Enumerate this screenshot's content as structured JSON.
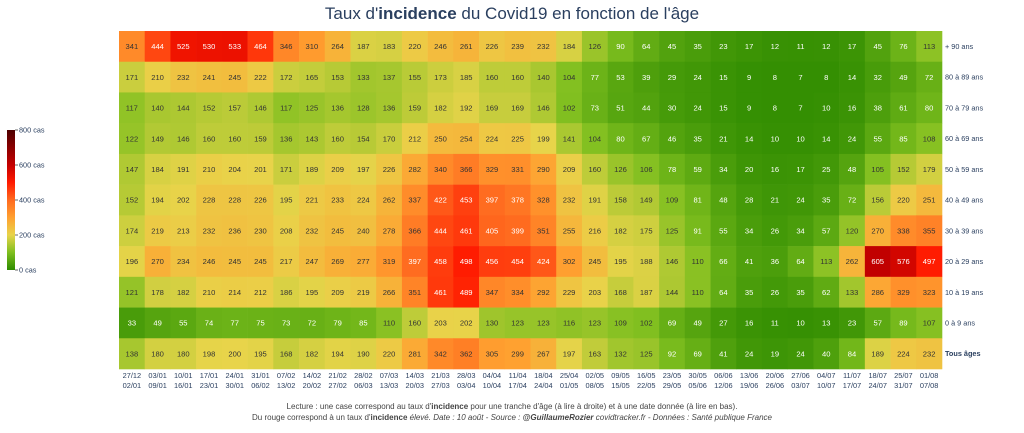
{
  "title": {
    "pre": "Taux d'",
    "bold": "incidence",
    "post": " du Covid19 en fonction de l'âge"
  },
  "footer": {
    "line1_pre": "Lecture : une case correspond au taux d'",
    "line1_bold": "incidence",
    "line1_post": " pour une tranche d'âge (à lire à droite) et à une date donnée (à lire en bas).",
    "line2_pre": "Du rouge correspond à un taux d'",
    "line2_bold": "incidence",
    "line2_mid": " élevé.  Date : 10 août - Source : ",
    "line2_handle": "@GuillaumeRozier",
    "line2_post": " covidtracker.fr - Données : Santé publique France"
  },
  "chart_data": {
    "type": "heatmap",
    "colorbar": {
      "ticks": [
        "800 cas",
        "600 cas",
        "400 cas",
        "200 cas",
        "0 cas"
      ],
      "range": [
        0,
        800
      ]
    },
    "colorscale": [
      "#2e8b00",
      "#7fbf1f",
      "#e8d44a",
      "#ffa030",
      "#ff6a1f",
      "#ff1a00",
      "#c40000",
      "#8a0000",
      "#4d0000"
    ],
    "x_top": [
      "27/12",
      "03/01",
      "10/01",
      "17/01",
      "24/01",
      "31/01",
      "07/02",
      "14/02",
      "21/02",
      "28/02",
      "07/03",
      "14/03",
      "21/03",
      "28/03",
      "04/04",
      "11/04",
      "18/04",
      "25/04",
      "02/05",
      "09/05",
      "16/05",
      "23/05",
      "30/05",
      "06/06",
      "13/06",
      "20/06",
      "27/06",
      "04/07",
      "11/07",
      "18/07",
      "25/07",
      "01/08"
    ],
    "x_bottom": [
      "02/01",
      "09/01",
      "16/01",
      "23/01",
      "30/01",
      "06/02",
      "13/02",
      "20/02",
      "27/02",
      "06/03",
      "13/03",
      "20/03",
      "27/03",
      "03/04",
      "10/04",
      "17/04",
      "24/04",
      "01/05",
      "08/05",
      "15/05",
      "22/05",
      "29/05",
      "05/06",
      "12/06",
      "19/06",
      "26/06",
      "03/07",
      "10/07",
      "17/07",
      "24/07",
      "31/07",
      "07/08"
    ],
    "rows": [
      {
        "label": "+ 90 ans",
        "values": [
          341,
          444,
          525,
          530,
          533,
          464,
          346,
          310,
          264,
          187,
          183,
          220,
          246,
          261,
          226,
          239,
          232,
          184,
          126,
          90,
          64,
          45,
          35,
          23,
          17,
          12,
          11,
          12,
          17,
          45,
          76,
          113
        ]
      },
      {
        "label": "80 à 89 ans",
        "values": [
          171,
          210,
          232,
          241,
          245,
          222,
          172,
          165,
          153,
          133,
          137,
          155,
          173,
          185,
          160,
          160,
          140,
          104,
          77,
          53,
          39,
          29,
          24,
          15,
          9,
          8,
          7,
          8,
          14,
          32,
          49,
          72
        ]
      },
      {
        "label": "70 à 79 ans",
        "values": [
          117,
          140,
          144,
          152,
          157,
          146,
          117,
          125,
          136,
          128,
          136,
          159,
          182,
          192,
          169,
          169,
          146,
          102,
          73,
          51,
          44,
          30,
          24,
          15,
          9,
          8,
          7,
          10,
          16,
          38,
          61,
          80
        ]
      },
      {
        "label": "60 à 69 ans",
        "values": [
          122,
          149,
          146,
          160,
          160,
          159,
          136,
          143,
          160,
          154,
          170,
          212,
          250,
          254,
          224,
          225,
          199,
          141,
          104,
          80,
          67,
          46,
          35,
          21,
          14,
          10,
          10,
          14,
          24,
          55,
          85,
          108
        ]
      },
      {
        "label": "50 à 59 ans",
        "values": [
          147,
          184,
          191,
          210,
          204,
          201,
          171,
          189,
          209,
          197,
          226,
          282,
          340,
          366,
          329,
          331,
          290,
          209,
          160,
          126,
          106,
          78,
          59,
          34,
          20,
          16,
          17,
          25,
          48,
          105,
          152,
          179
        ]
      },
      {
        "label": "40 à 49 ans",
        "values": [
          152,
          194,
          202,
          228,
          228,
          226,
          195,
          221,
          233,
          224,
          262,
          337,
          422,
          453,
          397,
          378,
          328,
          232,
          191,
          158,
          149,
          109,
          81,
          48,
          28,
          21,
          24,
          35,
          72,
          156,
          220,
          251
        ]
      },
      {
        "label": "30 à 39 ans",
        "values": [
          174,
          219,
          213,
          232,
          236,
          230,
          208,
          232,
          245,
          240,
          278,
          366,
          444,
          461,
          405,
          399,
          351,
          255,
          216,
          182,
          175,
          125,
          91,
          55,
          34,
          26,
          34,
          57,
          120,
          270,
          338,
          355
        ]
      },
      {
        "label": "20 à 29 ans",
        "values": [
          196,
          270,
          234,
          246,
          245,
          245,
          217,
          247,
          269,
          277,
          319,
          397,
          458,
          498,
          456,
          454,
          424,
          302,
          245,
          195,
          188,
          146,
          110,
          66,
          41,
          36,
          64,
          113,
          262,
          605,
          576,
          497
        ]
      },
      {
        "label": "10 à 19 ans",
        "values": [
          121,
          178,
          182,
          210,
          214,
          212,
          186,
          195,
          209,
          219,
          266,
          351,
          461,
          489,
          347,
          334,
          292,
          229,
          203,
          168,
          187,
          144,
          110,
          64,
          35,
          26,
          35,
          62,
          133,
          286,
          329,
          323
        ]
      },
      {
        "label": "0 à 9 ans",
        "values": [
          33,
          49,
          55,
          74,
          77,
          75,
          73,
          72,
          79,
          85,
          110,
          160,
          203,
          202,
          130,
          123,
          123,
          116,
          123,
          109,
          102,
          69,
          49,
          27,
          16,
          11,
          10,
          13,
          23,
          57,
          89,
          107
        ]
      },
      {
        "label": "Tous âges",
        "bold": true,
        "values": [
          138,
          180,
          180,
          198,
          200,
          195,
          168,
          182,
          194,
          190,
          220,
          281,
          342,
          362,
          305,
          299,
          267,
          197,
          163,
          132,
          125,
          92,
          69,
          41,
          24,
          19,
          24,
          40,
          84,
          189,
          224,
          232
        ]
      }
    ]
  }
}
